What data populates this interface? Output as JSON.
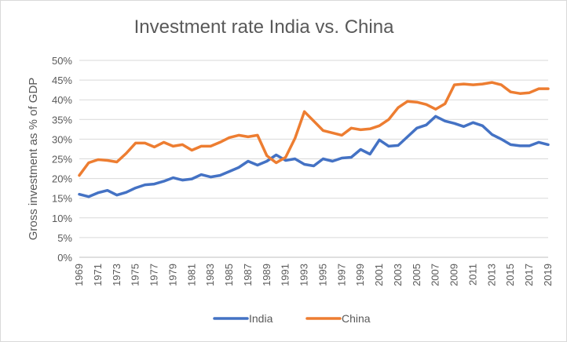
{
  "chart_data": {
    "type": "line",
    "title": "Investment rate India vs. China",
    "xlabel": "",
    "ylabel": "Gross investment as % of GDP",
    "ylim": [
      0,
      50
    ],
    "y_ticks": [
      "0%",
      "5%",
      "10%",
      "15%",
      "20%",
      "25%",
      "30%",
      "35%",
      "40%",
      "45%",
      "50%"
    ],
    "x_tick_labels": [
      "1969",
      "1971",
      "1973",
      "1975",
      "1977",
      "1979",
      "1981",
      "1983",
      "1985",
      "1987",
      "1989",
      "1991",
      "1993",
      "1995",
      "1997",
      "1999",
      "2001",
      "2003",
      "2005",
      "2007",
      "2009",
      "2011",
      "2013",
      "2015",
      "2017",
      "2019"
    ],
    "grid": "horizontal",
    "legend_position": "bottom",
    "x": [
      1969,
      1970,
      1971,
      1972,
      1973,
      1974,
      1975,
      1976,
      1977,
      1978,
      1979,
      1980,
      1981,
      1982,
      1983,
      1984,
      1985,
      1986,
      1987,
      1988,
      1989,
      1990,
      1991,
      1992,
      1993,
      1994,
      1995,
      1996,
      1997,
      1998,
      1999,
      2000,
      2001,
      2002,
      2003,
      2004,
      2005,
      2006,
      2007,
      2008,
      2009,
      2010,
      2011,
      2012,
      2013,
      2014,
      2015,
      2016,
      2017,
      2018,
      2019
    ],
    "series": [
      {
        "name": "India",
        "color": "#4472c4",
        "values": [
          16.0,
          15.4,
          16.4,
          17.0,
          15.8,
          16.5,
          17.6,
          18.4,
          18.6,
          19.3,
          20.2,
          19.6,
          19.9,
          21.0,
          20.4,
          20.8,
          21.8,
          22.8,
          24.4,
          23.4,
          24.4,
          26.0,
          24.6,
          25.0,
          23.6,
          23.2,
          25.0,
          24.4,
          25.2,
          25.4,
          27.4,
          26.2,
          29.8,
          28.2,
          28.4,
          30.6,
          32.8,
          33.6,
          35.8,
          34.6,
          34.0,
          33.2,
          34.2,
          33.4,
          31.2,
          30.0,
          28.6,
          28.3,
          28.3,
          29.2,
          28.6
        ]
      },
      {
        "name": "China",
        "color": "#ed7d31",
        "values": [
          20.8,
          24.0,
          24.8,
          24.6,
          24.2,
          26.4,
          29.0,
          29.0,
          28.0,
          29.2,
          28.2,
          28.6,
          27.2,
          28.2,
          28.2,
          29.2,
          30.4,
          31.0,
          30.6,
          31.0,
          25.8,
          24.0,
          25.4,
          30.2,
          37.0,
          34.6,
          32.2,
          31.6,
          31.0,
          32.8,
          32.4,
          32.6,
          33.4,
          35.0,
          38.0,
          39.6,
          39.4,
          38.8,
          37.6,
          39.0,
          43.8,
          44.0,
          43.8,
          44.0,
          44.4,
          43.8,
          42.0,
          41.6,
          41.8,
          42.8,
          42.8
        ]
      }
    ]
  }
}
